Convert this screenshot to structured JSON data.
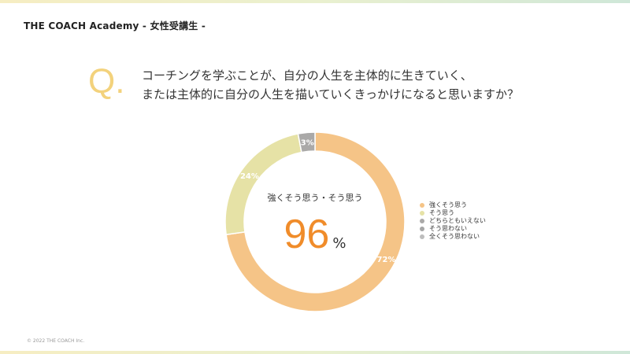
{
  "header": {
    "title": "THE COACH Academy - 女性受講生 -"
  },
  "question": {
    "mark": "Q.",
    "line1": "コーチングを学ぶことが、自分の人生を主体的に生きていく、",
    "line2": "または主体的に自分の人生を描いていくきっかけになると思いますか？"
  },
  "summary": {
    "label": "強くそう思う・そう思う",
    "value": "96",
    "unit": "%"
  },
  "footer": {
    "copyright": "© 2022 THE COACH Inc."
  },
  "colors": {
    "strongly_agree": "#f5c487",
    "agree": "#e6e2a6",
    "neutral": "#aaa9a8",
    "disagree": "#a6a6a6",
    "strongly_disagree": "#bdbdbd",
    "accent": "#f08c2a",
    "q_mark": "#f3d27c"
  },
  "chart_data": {
    "type": "pie",
    "donut": true,
    "categories": [
      "強くそう思う",
      "そう思う",
      "どちらともいえない",
      "そう思わない",
      "全くそう思わない"
    ],
    "values": [
      72,
      24,
      3,
      0,
      0
    ],
    "data_labels": [
      "72%",
      "24%",
      "3%",
      "",
      ""
    ],
    "legend_position": "right"
  }
}
